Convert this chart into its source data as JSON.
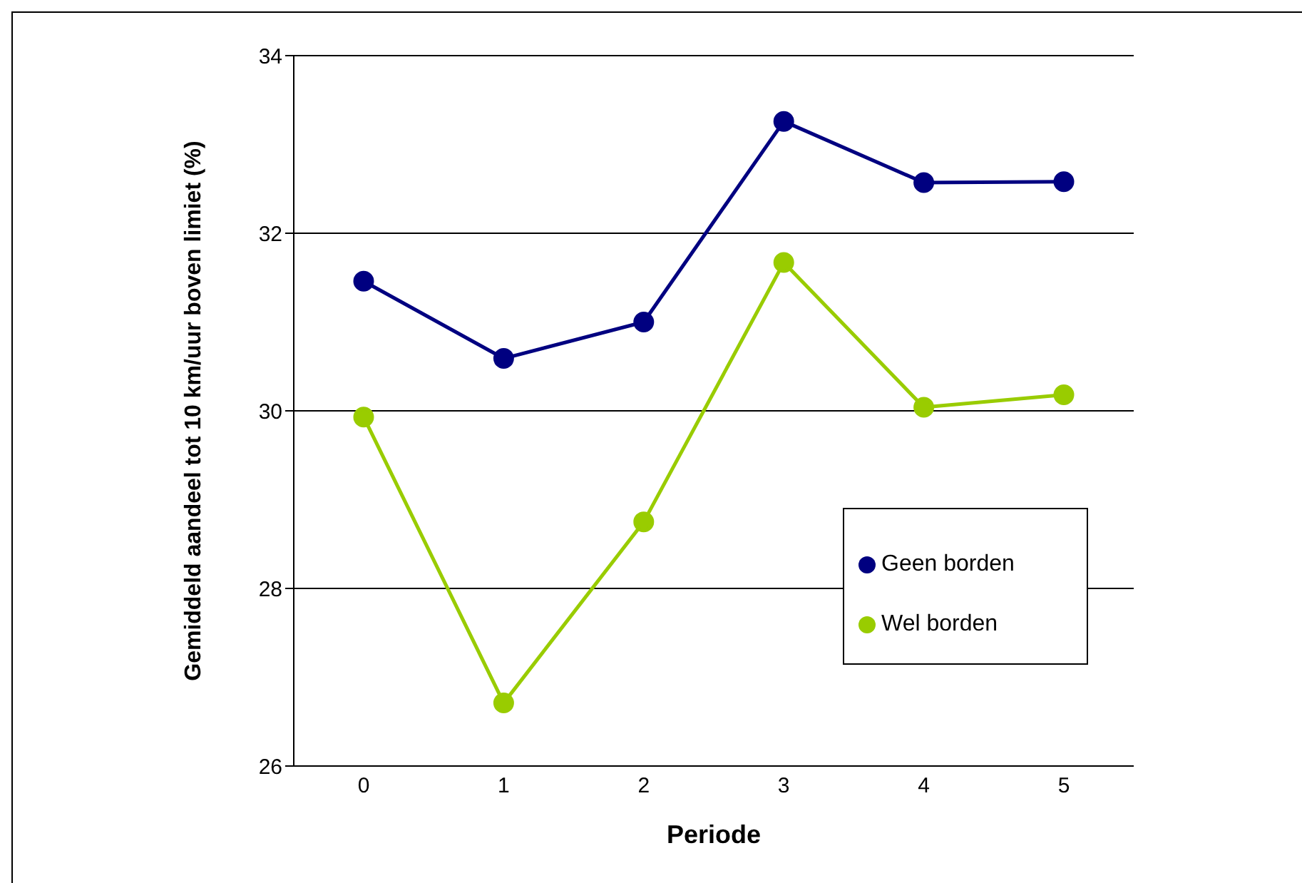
{
  "chart_data": {
    "type": "line",
    "xlabel": "Periode",
    "ylabel": "Gemiddeld aandeel tot 10 km/uur boven limiet (%)",
    "categories": [
      "0",
      "1",
      "2",
      "3",
      "4",
      "5"
    ],
    "series": [
      {
        "name": "Geen borden",
        "color": "#000080",
        "values": [
          31.46,
          30.59,
          31.0,
          33.26,
          32.57,
          32.58
        ]
      },
      {
        "name": "Wel borden",
        "color": "#99cc00",
        "values": [
          29.93,
          26.71,
          28.75,
          31.67,
          30.04,
          30.18
        ]
      }
    ],
    "ylim": [
      26,
      34
    ],
    "yticks": [
      26,
      28,
      30,
      32,
      34
    ],
    "grid": "y",
    "legend": "right",
    "marker": "circle",
    "line_style": "solid"
  }
}
